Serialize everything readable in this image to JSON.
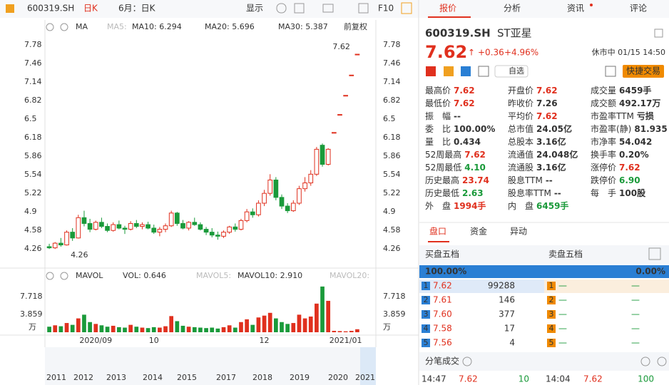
{
  "toolbar": {
    "code": "600319.SH",
    "period": "日K",
    "range": "6月：日K",
    "display": "显示",
    "f10": "F10"
  },
  "tabs": [
    "报价",
    "分析",
    "资讯",
    "评论"
  ],
  "chart": {
    "type": "candlestick",
    "header": {
      "ma": "MA",
      "ma5": "MA5:",
      "ma10": "MA10: 6.294",
      "ma20": "MA20: 5.696",
      "ma30": "MA30: 5.387",
      "adjust": "前复权"
    },
    "vol_header": {
      "name": "MAVOL",
      "vol": "VOL: 0.646",
      "mavol5": "MAVOL5:",
      "mavol10": "MAVOL10: 2.910",
      "mavol20": "MAVOL20:"
    },
    "categories": [
      null,
      null,
      null,
      null,
      null,
      null,
      null,
      null,
      "2020/09",
      null,
      null,
      null,
      null,
      null,
      null,
      null,
      null,
      null,
      "10",
      null,
      null,
      null,
      null,
      null,
      null,
      null,
      null,
      null,
      null,
      null,
      null,
      null,
      null,
      null,
      null,
      null,
      null,
      "12",
      null,
      null,
      null,
      null,
      null,
      null,
      null,
      null,
      null,
      null,
      null,
      null,
      null,
      "2021/01",
      null,
      null
    ],
    "open": [
      4.3,
      4.28,
      4.36,
      4.33,
      4.55,
      4.45,
      4.8,
      4.7,
      4.6,
      4.72,
      4.65,
      4.58,
      4.68,
      4.62,
      4.6,
      4.7,
      4.65,
      4.68,
      4.62,
      4.55,
      4.6,
      4.66,
      4.88,
      4.7,
      4.62,
      4.72,
      4.68,
      4.6,
      4.55,
      4.5,
      4.48,
      4.55,
      4.64,
      4.6,
      4.75,
      4.9,
      4.85,
      5.05,
      5.22,
      5.45,
      5.15,
      5.0,
      4.92,
      5.05,
      5.3,
      5.4,
      5.55,
      6.05,
      5.72,
      6.27,
      6.58,
      6.91,
      7.26,
      7.62
    ],
    "high": [
      4.35,
      4.38,
      4.45,
      4.58,
      4.62,
      4.85,
      4.92,
      4.78,
      4.75,
      4.8,
      4.7,
      4.72,
      4.75,
      4.66,
      4.74,
      4.76,
      4.72,
      4.73,
      4.68,
      4.64,
      4.7,
      4.92,
      4.9,
      4.76,
      4.74,
      4.8,
      4.72,
      4.64,
      4.62,
      4.56,
      4.58,
      4.66,
      4.7,
      4.78,
      4.95,
      4.96,
      5.1,
      5.28,
      5.55,
      5.5,
      5.2,
      5.05,
      5.1,
      5.35,
      5.5,
      5.62,
      6.02,
      6.08,
      6.0,
      6.27,
      6.58,
      6.91,
      7.26,
      7.62
    ],
    "low": [
      4.26,
      4.26,
      4.3,
      4.32,
      4.4,
      4.44,
      4.65,
      4.55,
      4.58,
      4.62,
      4.55,
      4.56,
      4.6,
      4.52,
      4.58,
      4.62,
      4.6,
      4.6,
      4.52,
      4.48,
      4.55,
      4.64,
      4.66,
      4.6,
      4.58,
      4.66,
      4.58,
      4.5,
      4.46,
      4.42,
      4.45,
      4.52,
      4.56,
      4.58,
      4.72,
      4.8,
      4.82,
      5.0,
      5.18,
      5.1,
      4.95,
      4.88,
      4.9,
      5.02,
      5.25,
      5.35,
      5.52,
      5.68,
      5.7,
      6.27,
      6.58,
      6.91,
      7.26,
      7.62
    ],
    "close": [
      4.28,
      4.36,
      4.33,
      4.55,
      4.45,
      4.8,
      4.7,
      4.6,
      4.72,
      4.65,
      4.58,
      4.68,
      4.62,
      4.6,
      4.7,
      4.65,
      4.68,
      4.62,
      4.55,
      4.6,
      4.66,
      4.88,
      4.7,
      4.62,
      4.72,
      4.68,
      4.6,
      4.55,
      4.5,
      4.48,
      4.55,
      4.64,
      4.6,
      4.75,
      4.9,
      4.85,
      5.05,
      5.22,
      5.45,
      5.15,
      5.0,
      4.92,
      5.05,
      5.3,
      5.4,
      5.55,
      5.98,
      5.72,
      5.98,
      6.27,
      6.58,
      6.91,
      7.26,
      7.62
    ],
    "volume": [
      1.2,
      1.5,
      1.3,
      2.0,
      1.6,
      3.0,
      3.8,
      2.2,
      1.8,
      1.5,
      1.2,
      1.4,
      1.1,
      1.0,
      1.6,
      1.2,
      1.0,
      0.9,
      1.1,
      1.0,
      1.3,
      3.5,
      2.4,
      1.4,
      1.2,
      1.1,
      1.0,
      0.9,
      1.0,
      0.8,
      1.1,
      1.5,
      1.0,
      2.2,
      2.8,
      1.6,
      3.2,
      3.6,
      4.2,
      3.0,
      2.2,
      1.8,
      2.0,
      3.8,
      3.0,
      3.4,
      6.2,
      9.9,
      6.8,
      0.3,
      0.25,
      0.2,
      0.3,
      0.646
    ],
    "up_color": "#e0301e",
    "down_color": "#1a9a3a",
    "ylim": [
      3.98,
      7.94
    ],
    "yticks": [
      4.26,
      4.58,
      4.9,
      5.22,
      5.54,
      5.86,
      6.18,
      6.5,
      6.82,
      7.14,
      7.46,
      7.78
    ],
    "vol_ylim": [
      0,
      10.19
    ],
    "vol_yticks": [
      3.859,
      7.718
    ],
    "vol_unit": "万",
    "high_label": 7.62,
    "low_label": 4.26,
    "grid": false,
    "years": [
      "2011",
      "2012",
      "2013",
      "2014",
      "2015",
      "2017",
      "2018",
      "2019",
      "2020",
      "2021"
    ]
  },
  "quote": {
    "code": "600319.SH",
    "name": "ST亚星",
    "price": "7.62",
    "change": "+0.36",
    "pct": "+4.96%",
    "status": "休市中 01/15 14:50",
    "watch": "自选",
    "trade": "快捷交易",
    "rows": [
      [
        [
          "最高价",
          "7.62"
        ],
        [
          "开盘价",
          "7.62"
        ],
        [
          "成交量",
          "6459手"
        ]
      ],
      [
        [
          "最低价",
          "7.62"
        ],
        [
          "昨收价",
          "7.26"
        ],
        [
          "成交额",
          "492.17万"
        ]
      ],
      [
        [
          "振　幅",
          "--"
        ],
        [
          "平均价",
          "7.62"
        ],
        [
          "市盈率TTM",
          "亏损"
        ]
      ],
      [
        [
          "委　比",
          "100.00%"
        ],
        [
          "总市值",
          "24.05亿"
        ],
        [
          "市盈率(静)",
          "81.935"
        ]
      ],
      [
        [
          "量　比",
          "0.434"
        ],
        [
          "总股本",
          "3.16亿"
        ],
        [
          "市净率",
          "54.042"
        ]
      ],
      [
        [
          "52周最高",
          "7.62"
        ],
        [
          "流通值",
          "24.048亿"
        ],
        [
          "换手率",
          "0.20%"
        ]
      ],
      [
        [
          "52周最低",
          "4.10"
        ],
        [
          "流通股",
          "3.16亿"
        ],
        [
          "涨停价",
          "7.62"
        ]
      ],
      [
        [
          "历史最高",
          "23.74"
        ],
        [
          "股息TTM",
          "--"
        ],
        [
          "跌停价",
          "6.90"
        ]
      ],
      [
        [
          "历史最低",
          "2.63"
        ],
        [
          "股息率TTM",
          "--"
        ],
        [
          "每　手",
          "100股"
        ]
      ],
      [
        [
          "外　盘",
          "1994手"
        ],
        [
          "内　盘",
          "6459手"
        ]
      ]
    ]
  },
  "panel_tabs": [
    "盘口",
    "资金",
    "异动"
  ],
  "order_book": {
    "buy_title": "买盘五档",
    "sell_title": "卖盘五档",
    "buy_pct": "100.00%",
    "sell_pct": "0.00%",
    "buy": [
      [
        "1",
        "7.62",
        "99288"
      ],
      [
        "2",
        "7.61",
        "146"
      ],
      [
        "3",
        "7.60",
        "377"
      ],
      [
        "4",
        "7.58",
        "17"
      ],
      [
        "5",
        "7.56",
        "4"
      ]
    ],
    "sell": [
      [
        "1",
        "—",
        "—"
      ],
      [
        "2",
        "—",
        "—"
      ],
      [
        "3",
        "—",
        "—"
      ],
      [
        "4",
        "—",
        "—"
      ],
      [
        "5",
        "—",
        "—"
      ]
    ]
  },
  "trades": {
    "title": "分笔成交",
    "rows": [
      [
        "14:47",
        "7.62",
        "10",
        "14:04",
        "7.62",
        "100"
      ]
    ]
  }
}
